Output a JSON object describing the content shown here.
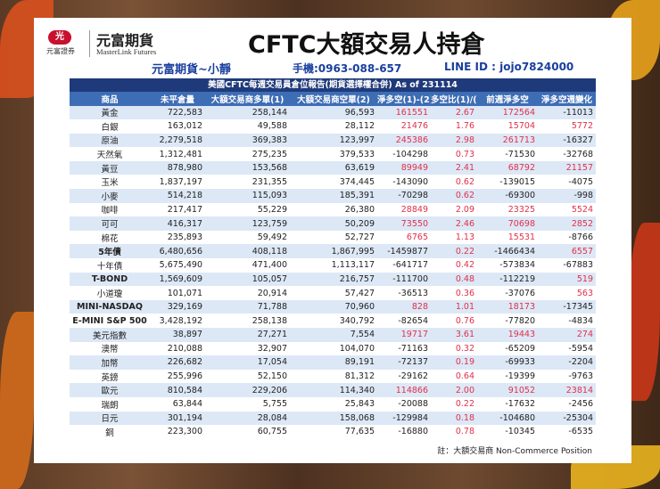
{
  "header": {
    "logo_badge": "元富證券",
    "logo_name": "元富期貨",
    "logo_sub": "MasterLink Futures",
    "title": "CFTC大額交易人持倉",
    "contact_name": "元富期貨~小靜",
    "contact_phone": "手機:0963-088-657",
    "contact_line": "LINE ID : jojo7824000"
  },
  "table": {
    "caption": "美國CFTC每週交易員倉位報告(期貨選擇權合併) As of  231114",
    "columns": [
      "商品",
      "未平倉量",
      "大額交易商多單(1)",
      "大額交易商空單(2)",
      "淨多空(1)-(2)",
      "多空比(1)/(2)",
      "前週淨多空",
      "淨多空週變化"
    ],
    "rows": [
      [
        "黃金",
        "722,583",
        "258,144",
        "96,593",
        "161551",
        "2.67",
        "172564",
        "-11013"
      ],
      [
        "白銀",
        "163,012",
        "49,588",
        "28,112",
        "21476",
        "1.76",
        "15704",
        "5772"
      ],
      [
        "原油",
        "2,279,518",
        "369,383",
        "123,997",
        "245386",
        "2.98",
        "261713",
        "-16327"
      ],
      [
        "天然氣",
        "1,312,481",
        "275,235",
        "379,533",
        "-104298",
        "0.73",
        "-71530",
        "-32768"
      ],
      [
        "黃豆",
        "878,980",
        "153,568",
        "63,619",
        "89949",
        "2.41",
        "68792",
        "21157"
      ],
      [
        "玉米",
        "1,837,197",
        "231,355",
        "374,445",
        "-143090",
        "0.62",
        "-139015",
        "-4075"
      ],
      [
        "小麥",
        "514,218",
        "115,093",
        "185,391",
        "-70298",
        "0.62",
        "-69300",
        "-998"
      ],
      [
        "咖啡",
        "217,417",
        "55,229",
        "26,380",
        "28849",
        "2.09",
        "23325",
        "5524"
      ],
      [
        "可可",
        "416,317",
        "123,759",
        "50,209",
        "73550",
        "2.46",
        "70698",
        "2852"
      ],
      [
        "棉花",
        "235,893",
        "59,492",
        "52,727",
        "6765",
        "1.13",
        "15531",
        "-8766"
      ],
      [
        "5年債",
        "6,480,656",
        "408,118",
        "1,867,995",
        "-1459877",
        "0.22",
        "-1466434",
        "6557"
      ],
      [
        "十年債",
        "5,675,490",
        "471,400",
        "1,113,117",
        "-641717",
        "0.42",
        "-573834",
        "-67883"
      ],
      [
        "T-BOND",
        "1,569,609",
        "105,057",
        "216,757",
        "-111700",
        "0.48",
        "-112219",
        "519"
      ],
      [
        "小道瓊",
        "101,071",
        "20,914",
        "57,427",
        "-36513",
        "0.36",
        "-37076",
        "563"
      ],
      [
        "MINI-NASDAQ",
        "329,169",
        "71,788",
        "70,960",
        "828",
        "1.01",
        "18173",
        "-17345"
      ],
      [
        "E-MINI S&P 500",
        "3,428,192",
        "258,138",
        "340,792",
        "-82654",
        "0.76",
        "-77820",
        "-4834"
      ],
      [
        "美元指數",
        "38,897",
        "27,271",
        "7,554",
        "19717",
        "3.61",
        "19443",
        "274"
      ],
      [
        "澳幣",
        "210,088",
        "32,907",
        "104,070",
        "-71163",
        "0.32",
        "-65209",
        "-5954"
      ],
      [
        "加幣",
        "226,682",
        "17,054",
        "89,191",
        "-72137",
        "0.19",
        "-69933",
        "-2204"
      ],
      [
        "英鎊",
        "255,996",
        "52,150",
        "81,312",
        "-29162",
        "0.64",
        "-19399",
        "-9763"
      ],
      [
        "歐元",
        "810,584",
        "229,206",
        "114,340",
        "114866",
        "2.00",
        "91052",
        "23814"
      ],
      [
        "瑞朗",
        "63,844",
        "5,755",
        "25,843",
        "-20088",
        "0.22",
        "-17632",
        "-2456"
      ],
      [
        "日元",
        "301,194",
        "28,084",
        "158,068",
        "-129984",
        "0.18",
        "-104680",
        "-25304"
      ],
      [
        "銅",
        "223,300",
        "60,755",
        "77,635",
        "-16880",
        "0.78",
        "-10345",
        "-6535"
      ]
    ],
    "footnote": "註：大額交易商 Non-Commerce Position"
  }
}
